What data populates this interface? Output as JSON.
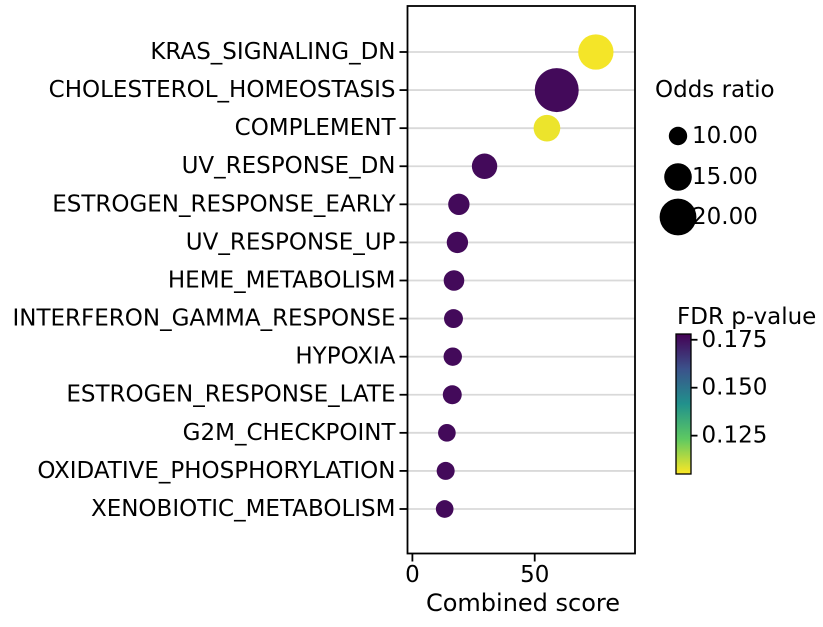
{
  "chart_data": {
    "type": "scatter",
    "subtype": "dot-plot-bubble",
    "title": "",
    "xlabel": "Combined score",
    "x_ticks": [
      0,
      50
    ],
    "x_tick_labels": [
      "0",
      "50"
    ],
    "xlim": [
      -2,
      91
    ],
    "grid": "horizontal",
    "legend_position": "right",
    "categories": [
      "KRAS_SIGNALING_DN",
      "CHOLESTEROL_HOMEOSTASIS",
      "COMPLEMENT",
      "UV_RESPONSE_DN",
      "ESTROGEN_RESPONSE_EARLY",
      "UV_RESPONSE_UP",
      "HEME_METABOLISM",
      "INTERFERON_GAMMA_RESPONSE",
      "HYPOXIA",
      "ESTROGEN_RESPONSE_LATE",
      "G2M_CHECKPOINT",
      "OXIDATIVE_PHOSPHORYLATION",
      "XENOBIOTIC_METABOLISM"
    ],
    "points": [
      {
        "pathway": "KRAS_SIGNALING_DN",
        "combined_score": 75.0,
        "odds_ratio": 19.2,
        "fdr_p_value": 0.106
      },
      {
        "pathway": "CHOLESTEROL_HOMEOSTASIS",
        "combined_score": 59.0,
        "odds_ratio": 23.9,
        "fdr_p_value": 0.176
      },
      {
        "pathway": "COMPLEMENT",
        "combined_score": 55.0,
        "odds_ratio": 14.5,
        "fdr_p_value": 0.107
      },
      {
        "pathway": "UV_RESPONSE_DN",
        "combined_score": 29.5,
        "odds_ratio": 13.8,
        "fdr_p_value": 0.176
      },
      {
        "pathway": "ESTROGEN_RESPONSE_EARLY",
        "combined_score": 19.0,
        "odds_ratio": 11.6,
        "fdr_p_value": 0.176
      },
      {
        "pathway": "UV_RESPONSE_UP",
        "combined_score": 18.4,
        "odds_ratio": 11.6,
        "fdr_p_value": 0.176
      },
      {
        "pathway": "HEME_METABOLISM",
        "combined_score": 17.0,
        "odds_ratio": 11.2,
        "fdr_p_value": 0.176
      },
      {
        "pathway": "INTERFERON_GAMMA_RESPONSE",
        "combined_score": 16.8,
        "odds_ratio": 10.3,
        "fdr_p_value": 0.176
      },
      {
        "pathway": "HYPOXIA",
        "combined_score": 16.5,
        "odds_ratio": 10.0,
        "fdr_p_value": 0.176
      },
      {
        "pathway": "ESTROGEN_RESPONSE_LATE",
        "combined_score": 16.3,
        "odds_ratio": 10.3,
        "fdr_p_value": 0.176
      },
      {
        "pathway": "G2M_CHECKPOINT",
        "combined_score": 14.1,
        "odds_ratio": 9.6,
        "fdr_p_value": 0.176
      },
      {
        "pathway": "OXIDATIVE_PHOSPHORYLATION",
        "combined_score": 13.6,
        "odds_ratio": 9.8,
        "fdr_p_value": 0.176
      },
      {
        "pathway": "XENOBIOTIC_METABOLISM",
        "combined_score": 13.2,
        "odds_ratio": 9.6,
        "fdr_p_value": 0.176
      }
    ],
    "size_legend": {
      "title": "Odds ratio",
      "entries": [
        {
          "label": "10.00",
          "odds_ratio": 10
        },
        {
          "label": "15.00",
          "odds_ratio": 15
        },
        {
          "label": "20.00",
          "odds_ratio": 20
        }
      ]
    },
    "colorbar": {
      "title": "FDR p-value",
      "tick_labels": [
        "0.175",
        "0.150",
        "0.125"
      ],
      "tick_values": [
        0.175,
        0.15,
        0.125
      ],
      "vmin": 0.105,
      "vmax": 0.178,
      "colormap": "viridis_reversed"
    }
  },
  "colors": {
    "background": "#ffffff",
    "axis": "#000000",
    "grid": "#d9d9d9",
    "text": "#000000",
    "viridis_stops": [
      "#440154",
      "#3b528b",
      "#21918c",
      "#5ec962",
      "#fde725"
    ]
  }
}
